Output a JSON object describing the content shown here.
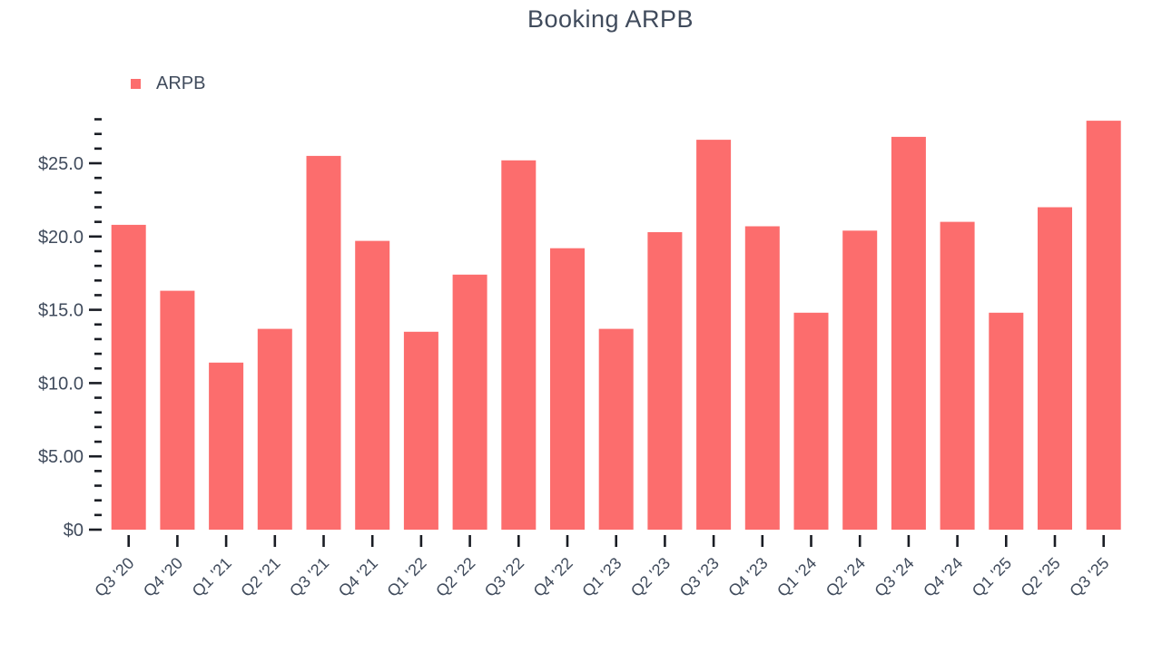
{
  "title": "Booking ARPB",
  "legend": {
    "label": "ARPB"
  },
  "colors": {
    "bar": "#fc6d6d",
    "text": "#404b5c",
    "tick": "#1a1d24"
  },
  "chart_data": {
    "type": "bar",
    "title": "Booking ARPB",
    "series_name": "ARPB",
    "categories": [
      "Q3 '20",
      "Q4 '20",
      "Q1 '21",
      "Q2 '21",
      "Q3 '21",
      "Q4 '21",
      "Q1 '22",
      "Q2 '22",
      "Q3 '22",
      "Q4 '22",
      "Q1 '23",
      "Q2 '23",
      "Q3 '23",
      "Q4 '23",
      "Q1 '24",
      "Q2 '24",
      "Q3 '24",
      "Q4 '24",
      "Q1 '25",
      "Q2 '25",
      "Q3 '25"
    ],
    "values": [
      20.8,
      16.3,
      11.4,
      13.7,
      25.5,
      19.7,
      13.5,
      17.4,
      25.2,
      19.2,
      13.7,
      20.3,
      26.6,
      20.7,
      14.8,
      20.4,
      26.8,
      21.0,
      14.8,
      22.0,
      27.9
    ],
    "xlabel": "",
    "ylabel": "",
    "ylim": [
      0,
      28
    ],
    "y_major_ticks": [
      {
        "value": 0,
        "label": "$0"
      },
      {
        "value": 5,
        "label": "$5.00"
      },
      {
        "value": 10,
        "label": "$10.0"
      },
      {
        "value": 15,
        "label": "$15.0"
      },
      {
        "value": 20,
        "label": "$20.0"
      },
      {
        "value": 25,
        "label": "$25.0"
      }
    ],
    "y_minor_tick_interval": 1,
    "grid": false,
    "legend_position": "top-left",
    "bar_color": "#fc6d6d"
  }
}
